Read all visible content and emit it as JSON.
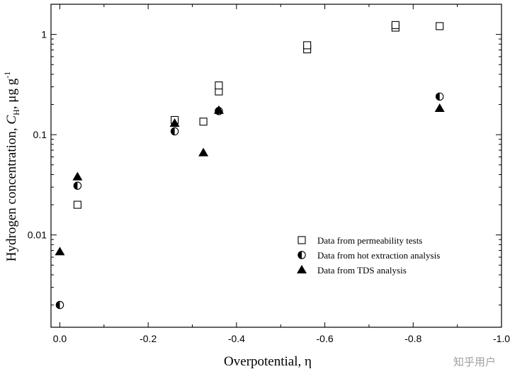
{
  "chart_data": {
    "type": "scatter",
    "title": "",
    "xlabel": "Overpotential, η",
    "ylabel": {
      "prefix": "Hydrogen concentration, ",
      "symbol": "C",
      "subscript": "H",
      "suffix": ", μg g",
      "superscript": "-1"
    },
    "xlim": [
      0.02,
      -1.0
    ],
    "ylim": [
      0.0012,
      2.0
    ],
    "yscale": "log",
    "grid": false,
    "legend_position": "center-right",
    "x_ticks": [
      0.0,
      -0.2,
      -0.4,
      -0.6,
      -0.8,
      -1.0
    ],
    "x_tick_labels": [
      "0.0",
      "-0.2",
      "-0.4",
      "-0.6",
      "-0.8",
      "-1.0"
    ],
    "y_ticks": [
      0.01,
      0.1,
      1
    ],
    "y_tick_labels": [
      "0.01",
      "0.1",
      "1"
    ],
    "series": [
      {
        "name": "Data from permeability tests",
        "marker": "open-square",
        "points": [
          {
            "x": -0.04,
            "y": 0.02
          },
          {
            "x": -0.26,
            "y": 0.14
          },
          {
            "x": -0.325,
            "y": 0.135
          },
          {
            "x": -0.36,
            "y": 0.27
          },
          {
            "x": -0.36,
            "y": 0.31
          },
          {
            "x": -0.56,
            "y": 0.71
          },
          {
            "x": -0.56,
            "y": 0.78
          },
          {
            "x": -0.76,
            "y": 1.17
          },
          {
            "x": -0.76,
            "y": 1.24
          },
          {
            "x": -0.86,
            "y": 1.21
          }
        ]
      },
      {
        "name": "Data from hot extraction analysis",
        "marker": "half-filled-circle",
        "points": [
          {
            "x": 0.0,
            "y": 0.002
          },
          {
            "x": -0.04,
            "y": 0.031
          },
          {
            "x": -0.26,
            "y": 0.108
          },
          {
            "x": -0.36,
            "y": 0.172
          },
          {
            "x": -0.86,
            "y": 0.24
          }
        ]
      },
      {
        "name": "Data from TDS analysis",
        "marker": "filled-triangle",
        "points": [
          {
            "x": 0.0,
            "y": 0.0068
          },
          {
            "x": -0.04,
            "y": 0.038
          },
          {
            "x": -0.26,
            "y": 0.13
          },
          {
            "x": -0.325,
            "y": 0.066
          },
          {
            "x": -0.36,
            "y": 0.175
          },
          {
            "x": -0.86,
            "y": 0.183
          }
        ]
      }
    ]
  },
  "watermark": "知乎用户"
}
